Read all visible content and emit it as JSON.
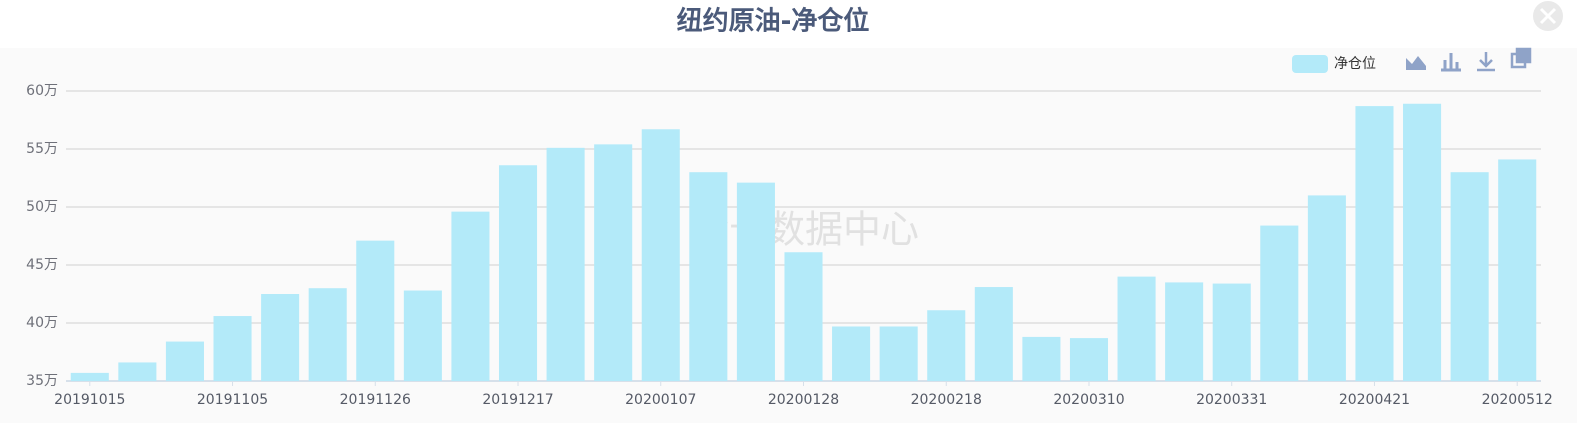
{
  "chart_data": {
    "type": "bar",
    "title": "纽约原油-净仓位",
    "watermark": "金十数据中心",
    "categories": [
      "20191015",
      null,
      null,
      "20191105",
      null,
      null,
      "20191126",
      null,
      null,
      "20191217",
      null,
      null,
      "20200107",
      null,
      null,
      "20200128",
      null,
      null,
      "20200218",
      null,
      null,
      "20200310",
      null,
      null,
      "20200331",
      null,
      null,
      "20200421",
      null,
      null,
      "20200512"
    ],
    "series": [
      {
        "name": "净仓位",
        "color": "#b3eaf9",
        "values": [
          35.7,
          36.6,
          38.4,
          40.6,
          42.5,
          43.0,
          47.1,
          42.8,
          49.6,
          53.6,
          55.1,
          55.4,
          56.7,
          53.0,
          52.1,
          46.1,
          39.7,
          39.7,
          41.1,
          43.1,
          38.8,
          38.7,
          44.0,
          43.5,
          43.4,
          48.4,
          51.0,
          58.7,
          58.9,
          53.0,
          54.1
        ]
      }
    ],
    "ylim": [
      35,
      60
    ],
    "yticks": [
      {
        "value": 35,
        "label": "35万"
      },
      {
        "value": 40,
        "label": "40万"
      },
      {
        "value": 45,
        "label": "45万"
      },
      {
        "value": 50,
        "label": "50万"
      },
      {
        "value": 55,
        "label": "55万"
      },
      {
        "value": 60,
        "label": "60万"
      }
    ],
    "grid": true,
    "legend": "top-right"
  }
}
